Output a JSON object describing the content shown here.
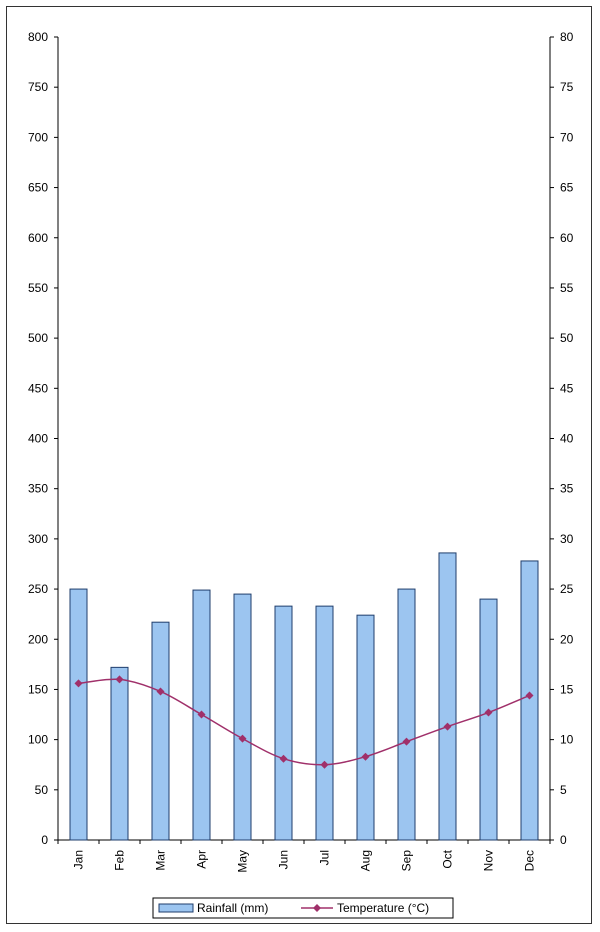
{
  "chart_data": {
    "type": "bar",
    "categories": [
      "Jan",
      "Feb",
      "Mar",
      "Apr",
      "May",
      "Jun",
      "Jul",
      "Aug",
      "Sep",
      "Oct",
      "Nov",
      "Dec"
    ],
    "series": [
      {
        "name": "Rainfall (mm)",
        "type": "bar",
        "axis": "left",
        "color": "#9cc5f0",
        "values": [
          250,
          172,
          217,
          249,
          245,
          233,
          233,
          224,
          250,
          286,
          240,
          278
        ]
      },
      {
        "name": "Temperature (°C)",
        "type": "line",
        "axis": "right",
        "color": "#a0306a",
        "values": [
          15.6,
          16.0,
          14.8,
          12.5,
          10.1,
          8.1,
          7.5,
          8.3,
          9.8,
          11.3,
          12.7,
          14.4
        ]
      }
    ],
    "y_left": {
      "min": 0,
      "max": 800,
      "ticks": [
        "0",
        "50",
        "100",
        "150",
        "200",
        "250",
        "300",
        "350",
        "400",
        "450",
        "500",
        "550",
        "600",
        "650",
        "700",
        "750",
        "800"
      ]
    },
    "y_right": {
      "min": 0,
      "max": 80,
      "ticks": [
        "0",
        "5",
        "10",
        "15",
        "20",
        "25",
        "30",
        "35",
        "40",
        "45",
        "50",
        "55",
        "60",
        "65",
        "70",
        "75",
        "80"
      ]
    },
    "grid": false,
    "legend_position": "bottom"
  }
}
